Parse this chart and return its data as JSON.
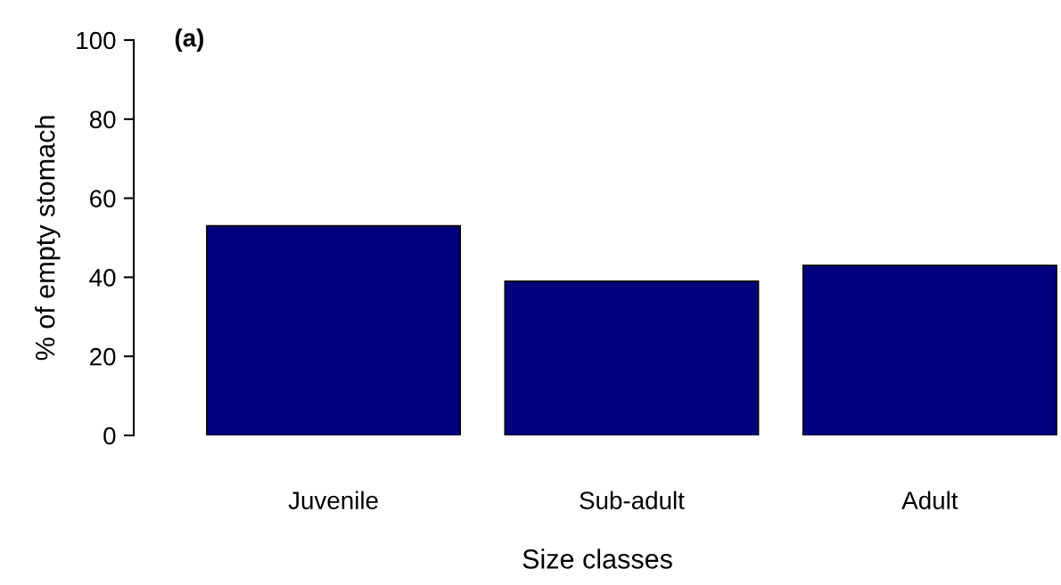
{
  "chart_data": {
    "type": "bar",
    "xlabel": "Size classes",
    "ylabel": "% of empty stomach",
    "annotations": [
      "(a)"
    ],
    "categories": [
      "Juvenile",
      "Sub-adult",
      "Adult"
    ],
    "values": [
      53,
      39,
      43
    ],
    "color": "#00007f",
    "ylim": [
      0,
      100
    ],
    "yticks": [
      0,
      20,
      40,
      60,
      80,
      100
    ],
    "grid": false,
    "legend": false
  }
}
